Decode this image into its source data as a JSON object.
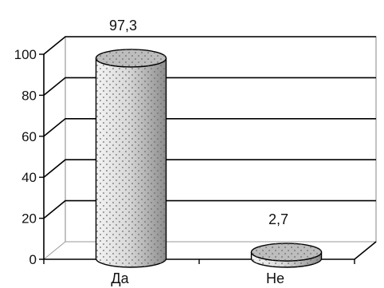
{
  "chart_data": {
    "type": "bar",
    "style": "3d-cylinder",
    "categories": [
      "Да",
      "Не"
    ],
    "values": [
      97.3,
      2.7
    ],
    "value_labels": [
      "97,3",
      "2,7"
    ],
    "ylim": [
      0,
      100
    ],
    "yticks": [
      0,
      20,
      40,
      60,
      80,
      100
    ],
    "ytick_labels": [
      "0",
      "20",
      "40",
      "60",
      "80",
      "100"
    ],
    "grid": true,
    "legend": "none",
    "title": "",
    "xlabel": "",
    "ylabel": "",
    "colors": {
      "bar_fill": "#cfcfcf",
      "bar_top": "#bdbdbd",
      "dots": "#6a6a6a",
      "grid": "#000000",
      "wall": "#9a9a9a"
    }
  }
}
